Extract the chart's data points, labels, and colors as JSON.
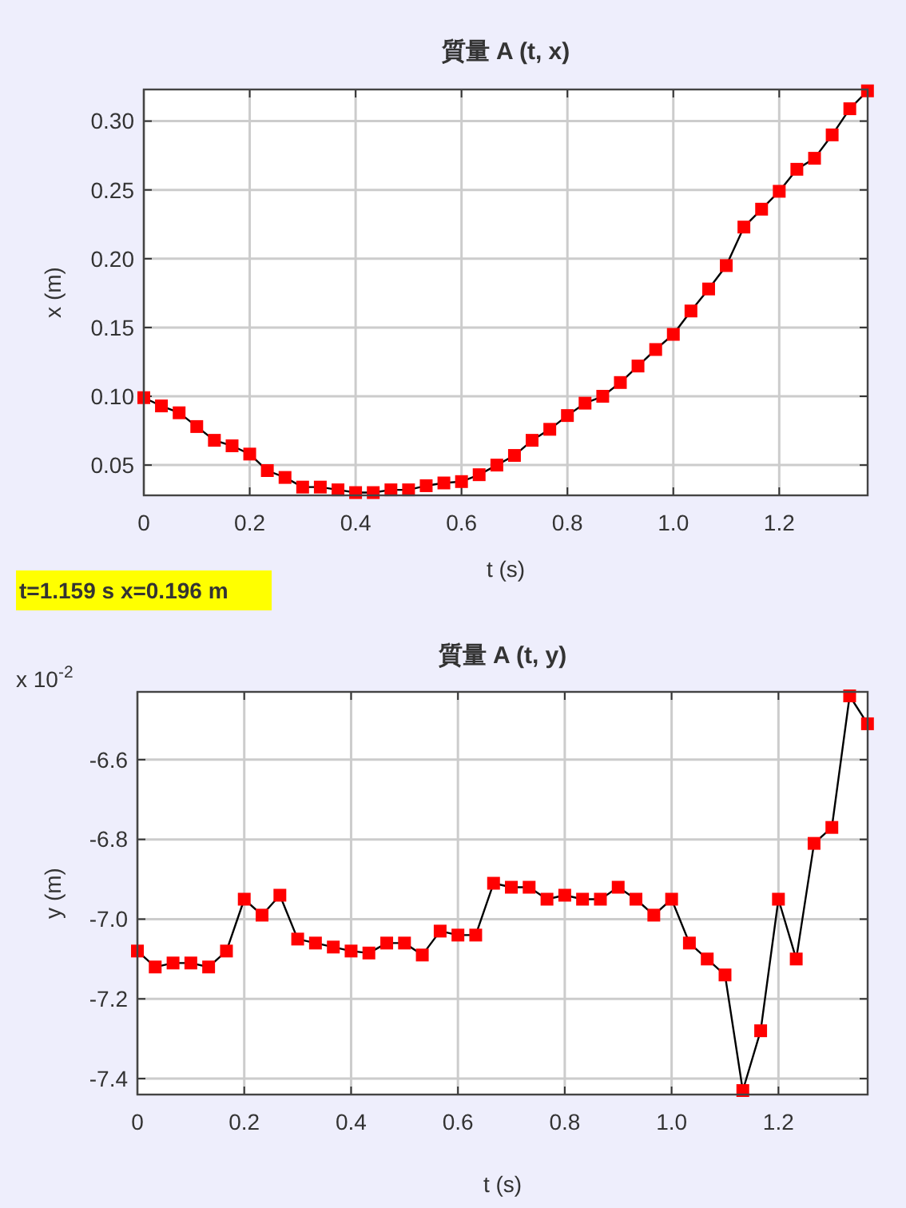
{
  "chart_data": [
    {
      "type": "line",
      "title": "質量 A (t, x)",
      "xlabel": "t (s)",
      "ylabel": "x (m)",
      "grid": true,
      "marker": "square",
      "line_style": "solid",
      "annotations": [
        "t=1.159 s  x=0.196 m"
      ],
      "xlim": [
        0,
        1.367
      ],
      "ylim": [
        0.028,
        0.323
      ],
      "xticks": [
        0,
        0.2,
        0.4,
        0.6,
        0.8,
        {
          "value": 1,
          "label": "1.0"
        },
        1.2
      ],
      "yticks": [
        0.05,
        {
          "value": 0.1,
          "label": "0.10"
        },
        0.15,
        {
          "value": 0.2,
          "label": "0.20"
        },
        0.25,
        {
          "value": 0.3,
          "label": "0.30"
        }
      ],
      "x": [
        0,
        0.0333,
        0.0667,
        0.1,
        0.1333,
        0.1667,
        0.2,
        0.2333,
        0.2667,
        0.3,
        0.3333,
        0.3667,
        0.4,
        0.4333,
        0.4667,
        0.5,
        0.5333,
        0.5667,
        0.6,
        0.6333,
        0.6667,
        0.7,
        0.7333,
        0.7667,
        0.8,
        0.8333,
        0.8667,
        0.9,
        0.9333,
        0.9667,
        1,
        1.0333,
        1.0667,
        1.1,
        1.1333,
        1.1667,
        1.2,
        1.2333,
        1.2667,
        1.3,
        1.3333,
        1.3667
      ],
      "series": [
        {
          "color": "#ff0000",
          "values": [
            0.099,
            0.093,
            0.088,
            0.078,
            0.068,
            0.064,
            0.058,
            0.046,
            0.041,
            0.034,
            0.034,
            0.032,
            0.03,
            0.03,
            0.032,
            0.032,
            0.035,
            0.037,
            0.038,
            0.043,
            0.05,
            0.057,
            0.068,
            0.076,
            0.086,
            0.095,
            0.1,
            0.11,
            0.122,
            0.134,
            0.145,
            0.162,
            0.178,
            0.195,
            0.223,
            0.236,
            0.249,
            0.265,
            0.273,
            0.29,
            0.309,
            0.322
          ]
        }
      ]
    },
    {
      "type": "line",
      "title": "質量 A (t, y)",
      "xlabel": "t (s)",
      "ylabel": "y (m)",
      "grid": true,
      "marker": "square",
      "line_style": "solid",
      "annotations": [
        "x 10$^{-2}$"
      ],
      "xlim": [
        0,
        1.367
      ],
      "ylim": [
        -7.44,
        -6.43
      ],
      "xticks": [
        0,
        0.2,
        0.4,
        0.6,
        0.8,
        {
          "value": 1,
          "label": "1.0"
        },
        1.2
      ],
      "yticks": [
        -6.6,
        -6.8,
        {
          "value": -7,
          "label": "-7.0"
        },
        -7.2,
        -7.4
      ],
      "x": [
        0,
        0.0333,
        0.0667,
        0.1,
        0.1333,
        0.1667,
        0.2,
        0.2333,
        0.2667,
        0.3,
        0.3333,
        0.3667,
        0.4,
        0.4333,
        0.4667,
        0.5,
        0.5333,
        0.5667,
        0.6,
        0.6333,
        0.6667,
        0.7,
        0.7333,
        0.7667,
        0.8,
        0.8333,
        0.8667,
        0.9,
        0.9333,
        0.9667,
        1,
        1.0333,
        1.0667,
        1.1,
        1.1333,
        1.1667,
        1.2,
        1.2333,
        1.2667,
        1.3,
        1.3333,
        1.3667
      ],
      "series": [
        {
          "color": "#ff0000",
          "values": [
            -7.08,
            -7.12,
            -7.11,
            -7.11,
            -7.12,
            -7.08,
            -6.95,
            -6.99,
            -6.94,
            -7.05,
            -7.06,
            -7.07,
            -7.08,
            -7.085,
            -7.06,
            -7.06,
            -7.09,
            -7.03,
            -7.04,
            -7.04,
            -6.91,
            -6.92,
            -6.92,
            -6.95,
            -6.94,
            -6.95,
            -6.95,
            -6.92,
            -6.95,
            -6.99,
            -6.95,
            -7.06,
            -7.1,
            -7.14,
            -7.43,
            -7.28,
            -6.95,
            -7.1,
            -6.81,
            -6.77,
            -6.44,
            -6.51
          ]
        }
      ]
    }
  ]
}
